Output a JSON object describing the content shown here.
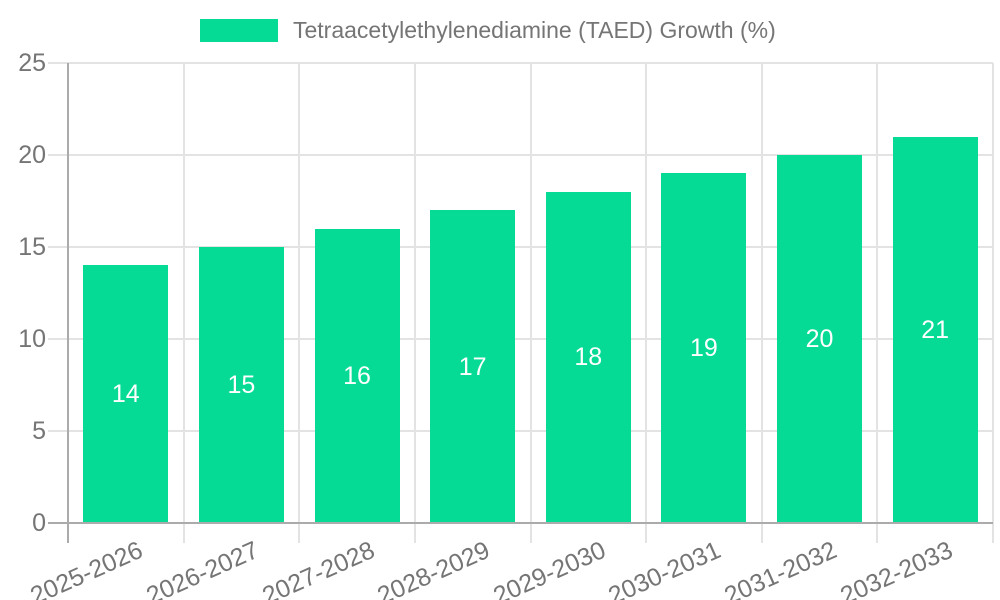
{
  "chart_data": {
    "type": "bar",
    "title": "Tetraacetylethylenediamine (TAED) Growth (%)",
    "legend": {
      "position": "top",
      "label": "Tetraacetylethylenediamine (TAED) Growth (%)"
    },
    "categories": [
      "2025-2026",
      "2026-2027",
      "2027-2028",
      "2028-2029",
      "2029-2030",
      "2030-2031",
      "2031-2032",
      "2032-2033"
    ],
    "values": [
      14,
      15,
      16,
      17,
      18,
      19,
      20,
      21
    ],
    "value_labels": [
      "14",
      "15",
      "16",
      "17",
      "18",
      "19",
      "20",
      "21"
    ],
    "xlabel": "",
    "ylabel": "",
    "ylim": [
      0,
      25
    ],
    "yticks": [
      0,
      5,
      10,
      15,
      20,
      25
    ],
    "grid": true,
    "colors": {
      "bar": "#05db94",
      "value_label": "#ffffff",
      "axis_text": "#757575",
      "grid_line": "#e3e3e3",
      "axis_line": "#ababab",
      "background": "#ffffff"
    }
  }
}
